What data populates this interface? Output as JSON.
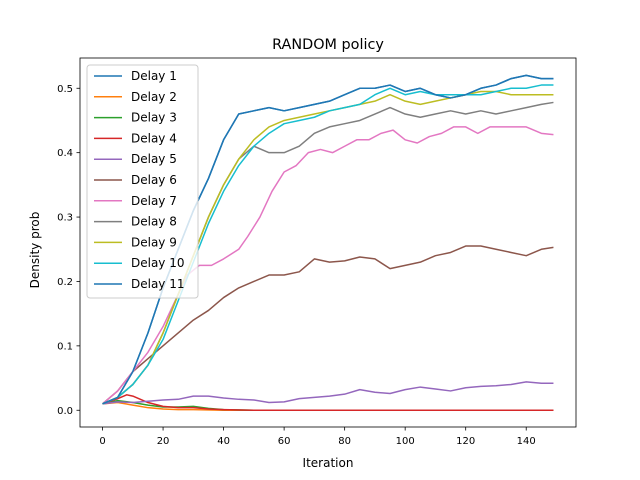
{
  "chart_data": {
    "type": "line",
    "title": "RANDOM policy",
    "xlabel": "Iteration",
    "ylabel": "Density prob",
    "xlim": [
      -7.45,
      156.45
    ],
    "ylim": [
      -0.026,
      0.547
    ],
    "xticks": [
      0,
      20,
      40,
      60,
      80,
      100,
      120,
      140
    ],
    "yticks": [
      0.0,
      0.1,
      0.2,
      0.3,
      0.4,
      0.5
    ],
    "ytick_labels": [
      "0.0",
      "0.1",
      "0.2",
      "0.3",
      "0.4",
      "0.5"
    ],
    "grid": false,
    "legend_position": "top-left",
    "series": [
      {
        "name": "Delay 1",
        "color": "#1f77b4",
        "points": [
          [
            0,
            0.01
          ],
          [
            5,
            0.02
          ],
          [
            10,
            0.06
          ],
          [
            15,
            0.12
          ],
          [
            20,
            0.19
          ],
          [
            25,
            0.25
          ],
          [
            30,
            0.31
          ],
          [
            35,
            0.36
          ],
          [
            40,
            0.42
          ],
          [
            45,
            0.46
          ],
          [
            50,
            0.465
          ],
          [
            55,
            0.47
          ],
          [
            60,
            0.465
          ],
          [
            65,
            0.47
          ],
          [
            70,
            0.475
          ],
          [
            75,
            0.48
          ],
          [
            80,
            0.49
          ],
          [
            85,
            0.5
          ],
          [
            90,
            0.5
          ],
          [
            95,
            0.505
          ],
          [
            100,
            0.495
          ],
          [
            105,
            0.5
          ],
          [
            110,
            0.49
          ],
          [
            115,
            0.485
          ],
          [
            120,
            0.49
          ],
          [
            125,
            0.5
          ],
          [
            130,
            0.505
          ],
          [
            135,
            0.515
          ],
          [
            140,
            0.52
          ],
          [
            145,
            0.515
          ],
          [
            149,
            0.515
          ]
        ]
      },
      {
        "name": "Delay 2",
        "color": "#ff7f0e",
        "points": [
          [
            0,
            0.01
          ],
          [
            5,
            0.012
          ],
          [
            10,
            0.008
          ],
          [
            15,
            0.004
          ],
          [
            20,
            0.002
          ],
          [
            25,
            0.001
          ],
          [
            30,
            0.001
          ],
          [
            40,
            0.0
          ],
          [
            60,
            0.0
          ],
          [
            80,
            0.0
          ],
          [
            100,
            0.0
          ],
          [
            120,
            0.0
          ],
          [
            149,
            0.0
          ]
        ]
      },
      {
        "name": "Delay 3",
        "color": "#2ca02c",
        "points": [
          [
            0,
            0.01
          ],
          [
            5,
            0.015
          ],
          [
            10,
            0.012
          ],
          [
            15,
            0.008
          ],
          [
            20,
            0.005
          ],
          [
            25,
            0.005
          ],
          [
            30,
            0.006
          ],
          [
            35,
            0.003
          ],
          [
            40,
            0.001
          ],
          [
            50,
            0.0
          ],
          [
            80,
            0.0
          ],
          [
            120,
            0.0
          ],
          [
            149,
            0.0
          ]
        ]
      },
      {
        "name": "Delay 4",
        "color": "#d62728",
        "points": [
          [
            0,
            0.01
          ],
          [
            5,
            0.018
          ],
          [
            8,
            0.024
          ],
          [
            10,
            0.022
          ],
          [
            15,
            0.012
          ],
          [
            20,
            0.006
          ],
          [
            25,
            0.004
          ],
          [
            30,
            0.004
          ],
          [
            35,
            0.002
          ],
          [
            40,
            0.001
          ],
          [
            50,
            0.0
          ],
          [
            80,
            0.0
          ],
          [
            120,
            0.0
          ],
          [
            149,
            0.0
          ]
        ]
      },
      {
        "name": "Delay 5",
        "color": "#9467bd",
        "points": [
          [
            0,
            0.01
          ],
          [
            5,
            0.013
          ],
          [
            10,
            0.012
          ],
          [
            15,
            0.014
          ],
          [
            20,
            0.016
          ],
          [
            25,
            0.017
          ],
          [
            30,
            0.022
          ],
          [
            35,
            0.022
          ],
          [
            40,
            0.019
          ],
          [
            45,
            0.017
          ],
          [
            50,
            0.016
          ],
          [
            55,
            0.012
          ],
          [
            60,
            0.013
          ],
          [
            65,
            0.018
          ],
          [
            70,
            0.02
          ],
          [
            75,
            0.022
          ],
          [
            80,
            0.025
          ],
          [
            85,
            0.032
          ],
          [
            90,
            0.028
          ],
          [
            95,
            0.026
          ],
          [
            100,
            0.032
          ],
          [
            105,
            0.036
          ],
          [
            110,
            0.033
          ],
          [
            115,
            0.03
          ],
          [
            120,
            0.035
          ],
          [
            125,
            0.037
          ],
          [
            130,
            0.038
          ],
          [
            135,
            0.04
          ],
          [
            140,
            0.044
          ],
          [
            145,
            0.042
          ],
          [
            149,
            0.042
          ]
        ]
      },
      {
        "name": "Delay 6",
        "color": "#8c564b",
        "points": [
          [
            0,
            0.01
          ],
          [
            5,
            0.03
          ],
          [
            10,
            0.06
          ],
          [
            15,
            0.08
          ],
          [
            20,
            0.1
          ],
          [
            25,
            0.12
          ],
          [
            30,
            0.14
          ],
          [
            35,
            0.155
          ],
          [
            40,
            0.175
          ],
          [
            45,
            0.19
          ],
          [
            50,
            0.2
          ],
          [
            55,
            0.21
          ],
          [
            60,
            0.21
          ],
          [
            65,
            0.215
          ],
          [
            70,
            0.235
          ],
          [
            75,
            0.23
          ],
          [
            80,
            0.232
          ],
          [
            85,
            0.238
          ],
          [
            90,
            0.235
          ],
          [
            95,
            0.22
          ],
          [
            100,
            0.225
          ],
          [
            105,
            0.23
          ],
          [
            110,
            0.24
          ],
          [
            115,
            0.245
          ],
          [
            120,
            0.255
          ],
          [
            125,
            0.255
          ],
          [
            130,
            0.25
          ],
          [
            135,
            0.245
          ],
          [
            140,
            0.24
          ],
          [
            145,
            0.25
          ],
          [
            149,
            0.253
          ]
        ]
      },
      {
        "name": "Delay 7",
        "color": "#e377c2",
        "points": [
          [
            0,
            0.01
          ],
          [
            5,
            0.03
          ],
          [
            10,
            0.06
          ],
          [
            15,
            0.09
          ],
          [
            20,
            0.13
          ],
          [
            25,
            0.18
          ],
          [
            28,
            0.21
          ],
          [
            32,
            0.225
          ],
          [
            36,
            0.225
          ],
          [
            40,
            0.235
          ],
          [
            45,
            0.25
          ],
          [
            48,
            0.27
          ],
          [
            52,
            0.3
          ],
          [
            56,
            0.34
          ],
          [
            60,
            0.37
          ],
          [
            64,
            0.38
          ],
          [
            68,
            0.4
          ],
          [
            72,
            0.405
          ],
          [
            76,
            0.4
          ],
          [
            80,
            0.41
          ],
          [
            84,
            0.42
          ],
          [
            88,
            0.42
          ],
          [
            92,
            0.43
          ],
          [
            96,
            0.435
          ],
          [
            100,
            0.42
          ],
          [
            104,
            0.415
          ],
          [
            108,
            0.425
          ],
          [
            112,
            0.43
          ],
          [
            116,
            0.44
          ],
          [
            120,
            0.44
          ],
          [
            124,
            0.43
          ],
          [
            128,
            0.44
          ],
          [
            132,
            0.44
          ],
          [
            136,
            0.44
          ],
          [
            140,
            0.44
          ],
          [
            145,
            0.43
          ],
          [
            149,
            0.428
          ]
        ]
      },
      {
        "name": "Delay 8",
        "color": "#7f7f7f",
        "points": [
          [
            0,
            0.01
          ],
          [
            5,
            0.02
          ],
          [
            10,
            0.04
          ],
          [
            15,
            0.07
          ],
          [
            20,
            0.12
          ],
          [
            25,
            0.18
          ],
          [
            30,
            0.24
          ],
          [
            35,
            0.3
          ],
          [
            40,
            0.35
          ],
          [
            45,
            0.39
          ],
          [
            50,
            0.41
          ],
          [
            55,
            0.4
          ],
          [
            60,
            0.4
          ],
          [
            65,
            0.41
          ],
          [
            70,
            0.43
          ],
          [
            75,
            0.44
          ],
          [
            80,
            0.445
          ],
          [
            85,
            0.45
          ],
          [
            90,
            0.46
          ],
          [
            95,
            0.47
          ],
          [
            100,
            0.46
          ],
          [
            105,
            0.455
          ],
          [
            110,
            0.46
          ],
          [
            115,
            0.465
          ],
          [
            120,
            0.46
          ],
          [
            125,
            0.465
          ],
          [
            130,
            0.46
          ],
          [
            135,
            0.465
          ],
          [
            140,
            0.47
          ],
          [
            145,
            0.475
          ],
          [
            149,
            0.478
          ]
        ]
      },
      {
        "name": "Delay 9",
        "color": "#bcbd22",
        "points": [
          [
            0,
            0.01
          ],
          [
            5,
            0.02
          ],
          [
            10,
            0.04
          ],
          [
            15,
            0.07
          ],
          [
            20,
            0.12
          ],
          [
            25,
            0.18
          ],
          [
            30,
            0.24
          ],
          [
            35,
            0.3
          ],
          [
            40,
            0.35
          ],
          [
            45,
            0.39
          ],
          [
            50,
            0.42
          ],
          [
            55,
            0.44
          ],
          [
            60,
            0.45
          ],
          [
            65,
            0.455
          ],
          [
            70,
            0.46
          ],
          [
            75,
            0.465
          ],
          [
            80,
            0.47
          ],
          [
            85,
            0.475
          ],
          [
            90,
            0.48
          ],
          [
            95,
            0.49
          ],
          [
            100,
            0.48
          ],
          [
            105,
            0.475
          ],
          [
            110,
            0.48
          ],
          [
            115,
            0.485
          ],
          [
            120,
            0.49
          ],
          [
            125,
            0.495
          ],
          [
            130,
            0.495
          ],
          [
            135,
            0.49
          ],
          [
            140,
            0.49
          ],
          [
            145,
            0.49
          ],
          [
            149,
            0.49
          ]
        ]
      },
      {
        "name": "Delay 10",
        "color": "#17becf",
        "points": [
          [
            0,
            0.01
          ],
          [
            5,
            0.02
          ],
          [
            10,
            0.04
          ],
          [
            15,
            0.07
          ],
          [
            20,
            0.11
          ],
          [
            25,
            0.17
          ],
          [
            30,
            0.23
          ],
          [
            35,
            0.29
          ],
          [
            40,
            0.34
          ],
          [
            45,
            0.38
          ],
          [
            50,
            0.41
          ],
          [
            55,
            0.43
          ],
          [
            60,
            0.445
          ],
          [
            65,
            0.45
          ],
          [
            70,
            0.455
          ],
          [
            75,
            0.465
          ],
          [
            80,
            0.47
          ],
          [
            85,
            0.475
          ],
          [
            90,
            0.49
          ],
          [
            95,
            0.5
          ],
          [
            100,
            0.49
          ],
          [
            105,
            0.495
          ],
          [
            110,
            0.49
          ],
          [
            115,
            0.49
          ],
          [
            120,
            0.49
          ],
          [
            125,
            0.49
          ],
          [
            130,
            0.495
          ],
          [
            135,
            0.5
          ],
          [
            140,
            0.5
          ],
          [
            145,
            0.505
          ],
          [
            149,
            0.505
          ]
        ]
      },
      {
        "name": "Delay 11",
        "color": "#1f77b4",
        "points": [
          [
            0,
            0.01
          ],
          [
            5,
            0.02
          ],
          [
            10,
            0.06
          ],
          [
            15,
            0.12
          ],
          [
            20,
            0.19
          ],
          [
            25,
            0.25
          ],
          [
            30,
            0.31
          ],
          [
            35,
            0.36
          ],
          [
            40,
            0.42
          ],
          [
            45,
            0.46
          ],
          [
            50,
            0.465
          ],
          [
            55,
            0.47
          ],
          [
            60,
            0.465
          ],
          [
            65,
            0.47
          ],
          [
            70,
            0.475
          ],
          [
            75,
            0.48
          ],
          [
            80,
            0.49
          ],
          [
            85,
            0.5
          ],
          [
            90,
            0.5
          ],
          [
            95,
            0.505
          ],
          [
            100,
            0.495
          ],
          [
            105,
            0.5
          ],
          [
            110,
            0.49
          ],
          [
            115,
            0.485
          ],
          [
            120,
            0.49
          ],
          [
            125,
            0.5
          ],
          [
            130,
            0.505
          ],
          [
            135,
            0.515
          ],
          [
            140,
            0.52
          ],
          [
            145,
            0.515
          ],
          [
            149,
            0.515
          ]
        ]
      }
    ]
  }
}
